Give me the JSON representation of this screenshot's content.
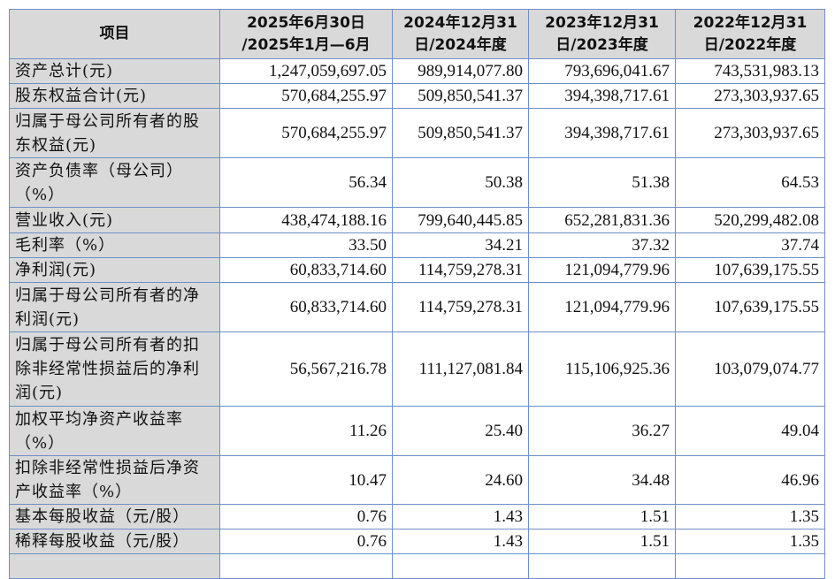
{
  "table": {
    "headers": [
      "项目",
      "2025年6月30日\n/2025年1月—6月",
      "2024年12月31\n日/2024年度",
      "2023年12月31\n日/2023年度",
      "2022年12月31\n日/2022年度"
    ],
    "rows": [
      {
        "label": "资产总计(元)",
        "values": [
          "1,247,059,697.05",
          "989,914,077.80",
          "793,696,041.67",
          "743,531,983.13"
        ],
        "h": 28
      },
      {
        "label": "股东权益合计(元)",
        "values": [
          "570,684,255.97",
          "509,850,541.37",
          "394,398,717.61",
          "273,303,937.65"
        ],
        "h": 28
      },
      {
        "label": "归属于母公司所有者的股东权益(元)",
        "values": [
          "570,684,255.97",
          "509,850,541.37",
          "394,398,717.61",
          "273,303,937.65"
        ],
        "h": 56
      },
      {
        "label": "资产负债率（母公司）（%）",
        "values": [
          "56.34",
          "50.38",
          "51.38",
          "64.53"
        ],
        "h": 56
      },
      {
        "label": "营业收入(元)",
        "values": [
          "438,474,188.16",
          "799,640,445.85",
          "652,281,831.36",
          "520,299,482.08"
        ],
        "h": 29
      },
      {
        "label": "毛利率（%）",
        "values": [
          "33.50",
          "34.21",
          "37.32",
          "37.74"
        ],
        "h": 28
      },
      {
        "label": "净利润(元)",
        "values": [
          "60,833,714.60",
          "114,759,278.31",
          "121,094,779.96",
          "107,639,175.55"
        ],
        "h": 28
      },
      {
        "label": "归属于母公司所有者的净利润(元)",
        "values": [
          "60,833,714.60",
          "114,759,278.31",
          "121,094,779.96",
          "107,639,175.55"
        ],
        "h": 56
      },
      {
        "label": "归属于母公司所有者的扣除非经常性损益后的净利润(元)",
        "values": [
          "56,567,216.78",
          "111,127,081.84",
          "115,106,925.36",
          "103,079,074.77"
        ],
        "h": 84
      },
      {
        "label": "加权平均净资产收益率（%）",
        "values": [
          "11.26",
          "25.40",
          "36.27",
          "49.04"
        ],
        "h": 56
      },
      {
        "label": "扣除非经常性损益后净资产收益率（%）",
        "values": [
          "10.47",
          "24.60",
          "34.48",
          "46.96"
        ],
        "h": 54
      },
      {
        "label": "基本每股收益（元/股）",
        "values": [
          "0.76",
          "1.43",
          "1.51",
          "1.35"
        ],
        "h": 28
      },
      {
        "label": "稀释每股收益（元/股）",
        "values": [
          "0.76",
          "1.43",
          "1.51",
          "1.35"
        ],
        "h": 28
      }
    ]
  }
}
